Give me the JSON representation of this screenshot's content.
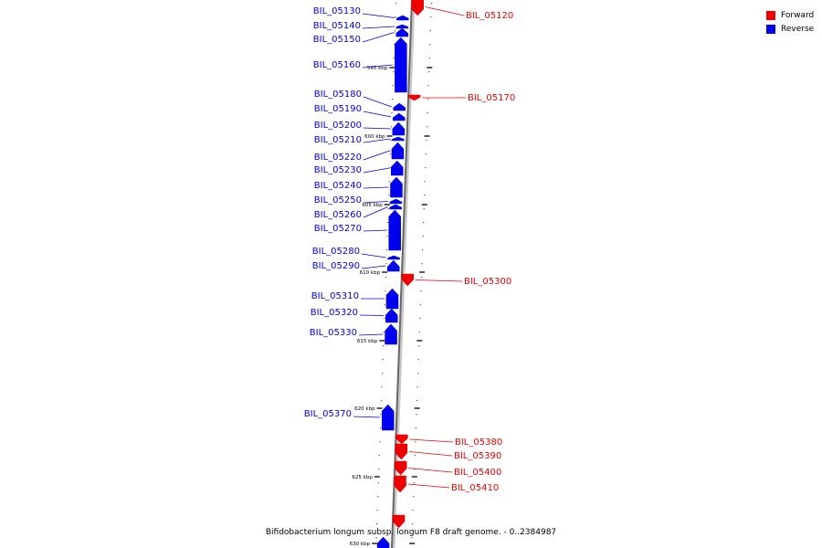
{
  "legend": {
    "forward_label": "Forward",
    "reverse_label": "Reverse",
    "forward_color": "#ee0000",
    "reverse_color": "#0000ee"
  },
  "caption": "Bifidobacterium longum subsp. longum F8 draft genome. - 0..2384987",
  "ticks": [
    "595 kbp",
    "600 kbp",
    "605 kbp",
    "610 kbp",
    "615 kbp",
    "620 kbp",
    "625 kbp",
    "630 kbp"
  ],
  "genes": {
    "reverse": [
      "BIL_05130",
      "BIL_05140",
      "BIL_05150",
      "BIL_05160",
      "BIL_05180",
      "BIL_05190",
      "BIL_05200",
      "BIL_05210",
      "BIL_05220",
      "BIL_05230",
      "BIL_05240",
      "BIL_05250",
      "BIL_05260",
      "BIL_05270",
      "BIL_05280",
      "BIL_05290",
      "BIL_05310",
      "BIL_05320",
      "BIL_05330",
      "BIL_05370"
    ],
    "forward": [
      "BIL_05120",
      "BIL_05170",
      "BIL_05300",
      "BIL_05380",
      "BIL_05390",
      "BIL_05400",
      "BIL_05410"
    ]
  }
}
